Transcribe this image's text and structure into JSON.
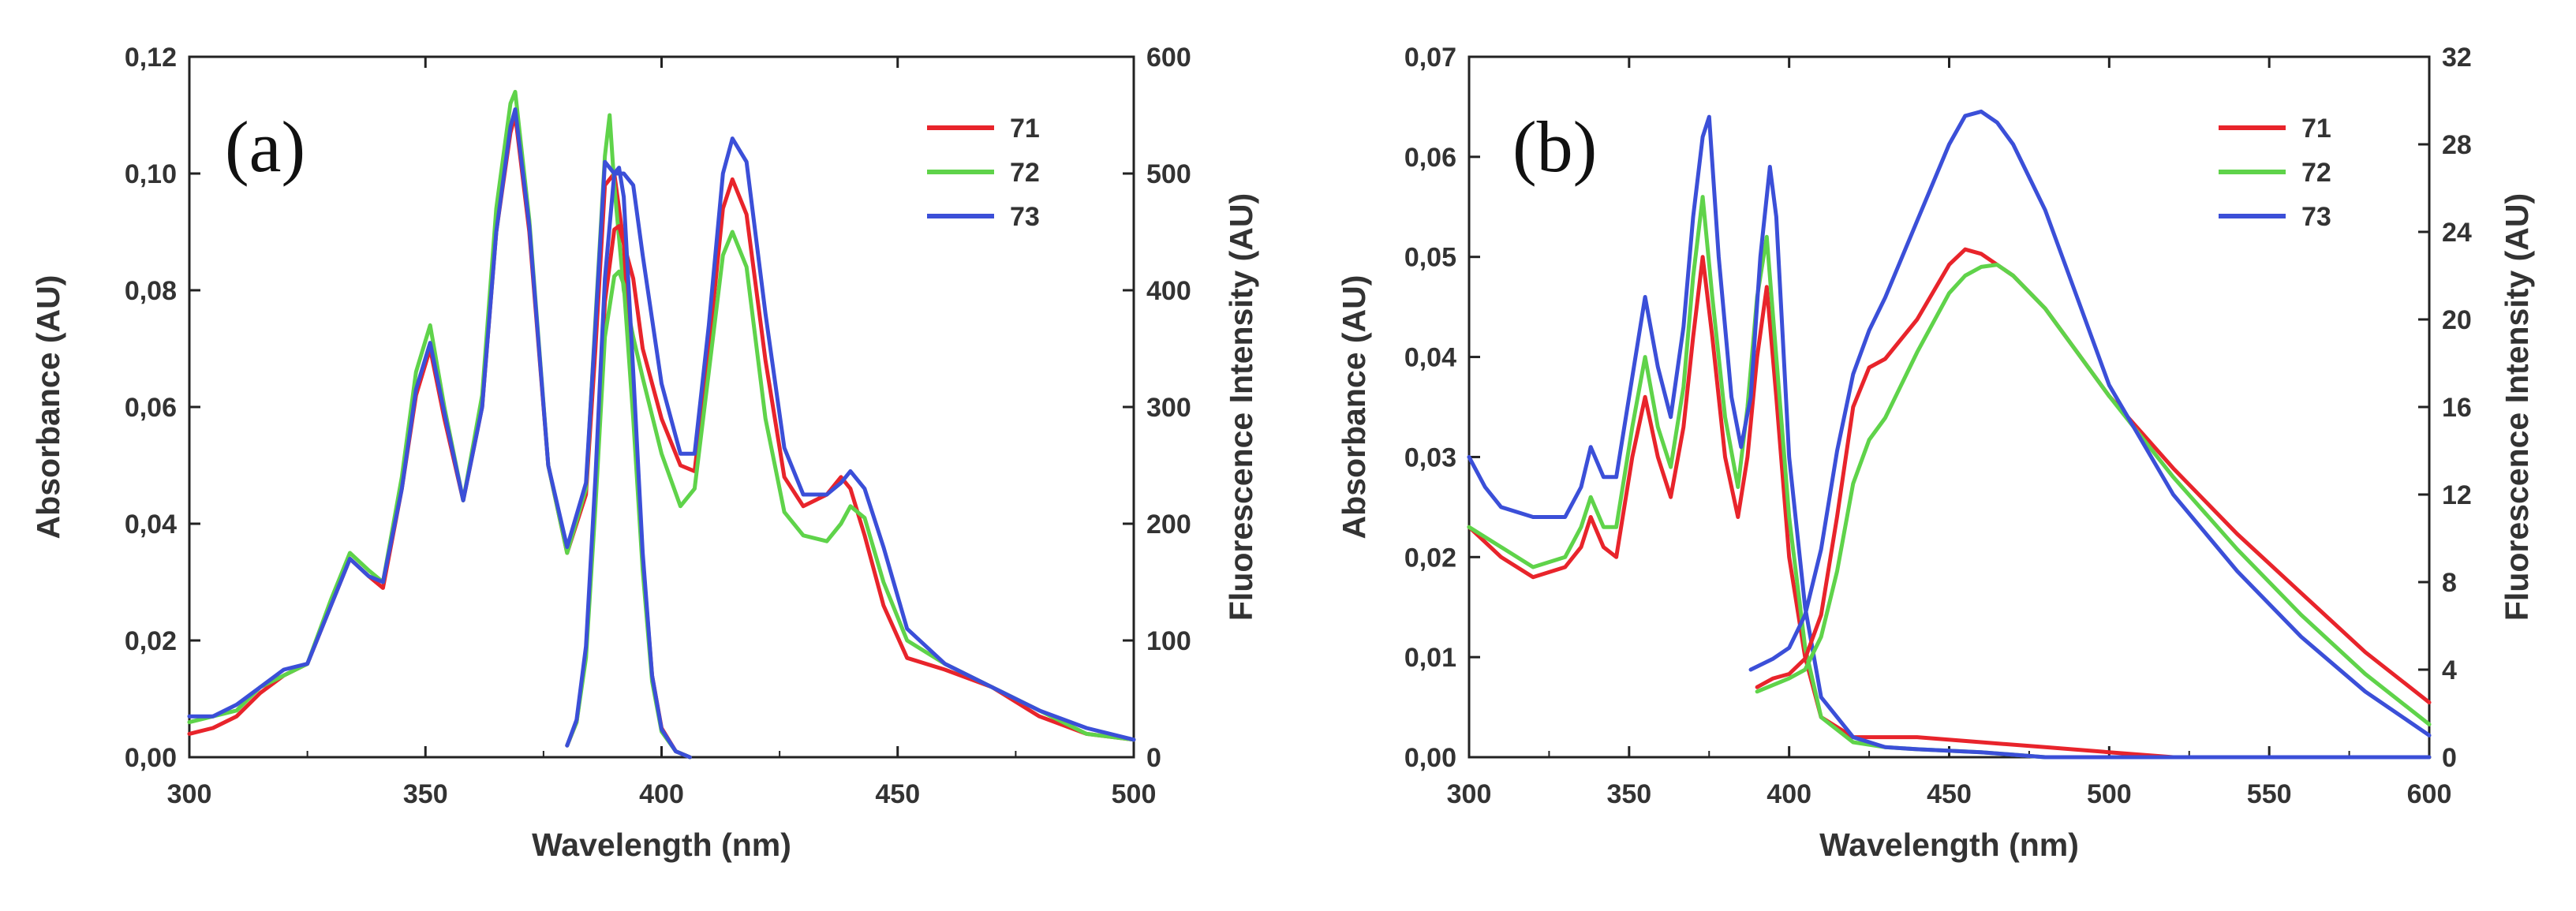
{
  "chart_data": [
    {
      "type": "line",
      "panel": "(a)",
      "xlabel": "Wavelength (nm)",
      "ylabel": "Absorbance (AU)",
      "y2label": "Fluorescence Intensity (AU)",
      "xlim": [
        300,
        500
      ],
      "ylim": [
        0,
        0.12
      ],
      "y2lim": [
        0,
        600
      ],
      "xticks": [
        300,
        350,
        400,
        450,
        500
      ],
      "yticks": [
        0,
        0.02,
        0.04,
        0.06,
        0.08,
        0.1,
        0.12
      ],
      "ytick_labels": [
        "0,00",
        "0,02",
        "0,04",
        "0,06",
        "0,08",
        "0,10",
        "0,12"
      ],
      "y2ticks": [
        0,
        100,
        200,
        300,
        400,
        500,
        600
      ],
      "legend": [
        "71",
        "72",
        "73"
      ],
      "legend_position": "top-right",
      "series": [
        {
          "name": "71",
          "color": "#e8242b",
          "kind": "absorbance",
          "x": [
            300,
            305,
            310,
            315,
            320,
            325,
            330,
            334,
            338,
            341,
            345,
            348,
            351,
            354,
            358,
            362,
            365,
            368,
            369,
            372,
            376,
            380,
            384,
            386,
            388,
            390,
            392,
            394,
            396,
            400,
            404,
            407,
            410,
            413,
            415,
            418,
            422,
            426,
            430,
            435,
            438,
            440,
            443,
            447,
            452,
            460,
            470,
            480,
            490,
            500
          ],
          "y": [
            0.004,
            0.005,
            0.007,
            0.011,
            0.014,
            0.016,
            0.026,
            0.034,
            0.031,
            0.029,
            0.046,
            0.062,
            0.07,
            0.058,
            0.044,
            0.06,
            0.09,
            0.107,
            0.11,
            0.09,
            0.05,
            0.035,
            0.045,
            0.07,
            0.098,
            0.1,
            0.088,
            0.082,
            0.07,
            0.058,
            0.05,
            0.049,
            0.07,
            0.094,
            0.099,
            0.093,
            0.068,
            0.048,
            0.043,
            0.045,
            0.048,
            0.046,
            0.038,
            0.026,
            0.017,
            0.015,
            0.012,
            0.007,
            0.004,
            0.003
          ]
        },
        {
          "name": "72",
          "color": "#5fd34a",
          "kind": "absorbance",
          "x": [
            300,
            305,
            310,
            315,
            320,
            325,
            330,
            334,
            338,
            341,
            345,
            348,
            351,
            354,
            358,
            362,
            365,
            368,
            369,
            372,
            376,
            380,
            384,
            386,
            388,
            389,
            390,
            392,
            394,
            396,
            400,
            404,
            407,
            410,
            413,
            415,
            418,
            422,
            426,
            430,
            435,
            438,
            440,
            443,
            447,
            452,
            460,
            470,
            480,
            490,
            500
          ],
          "y": [
            0.006,
            0.007,
            0.008,
            0.012,
            0.014,
            0.016,
            0.027,
            0.035,
            0.032,
            0.03,
            0.048,
            0.066,
            0.074,
            0.06,
            0.044,
            0.062,
            0.094,
            0.112,
            0.114,
            0.092,
            0.05,
            0.035,
            0.046,
            0.075,
            0.103,
            0.11,
            0.098,
            0.08,
            0.072,
            0.065,
            0.052,
            0.043,
            0.046,
            0.066,
            0.086,
            0.09,
            0.084,
            0.058,
            0.042,
            0.038,
            0.037,
            0.04,
            0.043,
            0.041,
            0.03,
            0.02,
            0.016,
            0.012,
            0.008,
            0.004,
            0.003
          ]
        },
        {
          "name": "73",
          "color": "#3b4fd8",
          "kind": "absorbance",
          "x": [
            300,
            305,
            310,
            315,
            320,
            325,
            330,
            334,
            338,
            341,
            345,
            348,
            351,
            354,
            358,
            362,
            365,
            368,
            369,
            372,
            376,
            380,
            384,
            386,
            388,
            390,
            392,
            394,
            396,
            400,
            404,
            407,
            410,
            413,
            415,
            418,
            422,
            426,
            430,
            435,
            438,
            440,
            443,
            447,
            452,
            460,
            470,
            480,
            490,
            500
          ],
          "y": [
            0.007,
            0.007,
            0.009,
            0.012,
            0.015,
            0.016,
            0.026,
            0.034,
            0.031,
            0.03,
            0.046,
            0.063,
            0.071,
            0.059,
            0.044,
            0.06,
            0.09,
            0.108,
            0.111,
            0.091,
            0.05,
            0.036,
            0.047,
            0.074,
            0.102,
            0.1,
            0.1,
            0.098,
            0.086,
            0.064,
            0.052,
            0.052,
            0.074,
            0.1,
            0.106,
            0.102,
            0.076,
            0.053,
            0.045,
            0.045,
            0.047,
            0.049,
            0.046,
            0.036,
            0.022,
            0.016,
            0.012,
            0.008,
            0.005,
            0.003
          ]
        },
        {
          "name": "71",
          "color": "#e8242b",
          "kind": "fluorescence",
          "x": [
            380,
            382,
            384,
            386,
            388,
            390,
            391,
            392,
            394,
            396,
            398,
            400,
            403,
            406
          ],
          "y": [
            10,
            30,
            90,
            230,
            390,
            452,
            455,
            440,
            310,
            170,
            70,
            25,
            5,
            0
          ]
        },
        {
          "name": "72",
          "color": "#5fd34a",
          "kind": "fluorescence",
          "x": [
            380,
            382,
            384,
            386,
            388,
            390,
            391,
            392,
            394,
            396,
            398,
            400,
            403,
            406
          ],
          "y": [
            10,
            30,
            85,
            215,
            360,
            412,
            416,
            405,
            290,
            160,
            65,
            22,
            5,
            0
          ]
        },
        {
          "name": "73",
          "color": "#3b4fd8",
          "kind": "fluorescence",
          "x": [
            380,
            382,
            384,
            386,
            388,
            390,
            391,
            392,
            394,
            396,
            398,
            400,
            403,
            406
          ],
          "y": [
            10,
            32,
            95,
            240,
            410,
            500,
            505,
            480,
            330,
            175,
            70,
            24,
            5,
            0
          ]
        }
      ]
    },
    {
      "type": "line",
      "panel": "(b)",
      "xlabel": "Wavelength (nm)",
      "ylabel": "Absorbance (AU)",
      "y2label": "Fluorescence Intensity (AU)",
      "xlim": [
        300,
        600
      ],
      "ylim": [
        0,
        0.07
      ],
      "y2lim": [
        0,
        32
      ],
      "xticks": [
        300,
        350,
        400,
        450,
        500,
        550,
        600
      ],
      "yticks": [
        0,
        0.01,
        0.02,
        0.03,
        0.04,
        0.05,
        0.06,
        0.07
      ],
      "ytick_labels": [
        "0,00",
        "0,01",
        "0,02",
        "0,03",
        "0,04",
        "0,05",
        "0,06",
        "0,07"
      ],
      "y2ticks": [
        0,
        4,
        8,
        12,
        16,
        20,
        24,
        28,
        32
      ],
      "legend": [
        "71",
        "72",
        "73"
      ],
      "legend_position": "top-right",
      "series": [
        {
          "name": "71",
          "color": "#e8242b",
          "kind": "absorbance",
          "x": [
            300,
            310,
            320,
            330,
            335,
            338,
            342,
            346,
            351,
            355,
            359,
            363,
            367,
            370,
            373,
            376,
            380,
            384,
            387,
            390,
            393,
            396,
            400,
            405,
            410,
            420,
            430,
            440,
            460,
            480,
            500,
            520,
            550,
            600
          ],
          "y": [
            0.023,
            0.02,
            0.018,
            0.019,
            0.021,
            0.024,
            0.021,
            0.02,
            0.03,
            0.036,
            0.03,
            0.026,
            0.033,
            0.042,
            0.05,
            0.042,
            0.03,
            0.024,
            0.03,
            0.04,
            0.047,
            0.036,
            0.02,
            0.01,
            0.004,
            0.002,
            0.002,
            0.002,
            0.0015,
            0.001,
            0.0005,
            0.0,
            0.0,
            0.0
          ]
        },
        {
          "name": "72",
          "color": "#5fd34a",
          "kind": "absorbance",
          "x": [
            300,
            310,
            320,
            330,
            335,
            338,
            342,
            346,
            351,
            355,
            359,
            363,
            367,
            370,
            373,
            376,
            380,
            384,
            387,
            390,
            393,
            396,
            400,
            405,
            410,
            420,
            430,
            440,
            460,
            480,
            500,
            520,
            550,
            600
          ],
          "y": [
            0.023,
            0.021,
            0.019,
            0.02,
            0.023,
            0.026,
            0.023,
            0.023,
            0.033,
            0.04,
            0.033,
            0.029,
            0.037,
            0.048,
            0.056,
            0.046,
            0.034,
            0.027,
            0.035,
            0.046,
            0.052,
            0.04,
            0.024,
            0.011,
            0.004,
            0.0015,
            0.001,
            0.0008,
            0.0005,
            0.0,
            0.0,
            0.0,
            0.0,
            0.0
          ]
        },
        {
          "name": "73",
          "color": "#3b4fd8",
          "kind": "absorbance",
          "x": [
            300,
            305,
            310,
            320,
            330,
            335,
            338,
            342,
            346,
            351,
            355,
            359,
            363,
            367,
            370,
            373,
            375,
            378,
            382,
            385,
            388,
            391,
            394,
            396,
            400,
            405,
            410,
            420,
            430,
            440,
            460,
            480,
            500,
            520,
            550,
            600
          ],
          "y": [
            0.03,
            0.027,
            0.025,
            0.024,
            0.024,
            0.027,
            0.031,
            0.028,
            0.028,
            0.038,
            0.046,
            0.039,
            0.034,
            0.043,
            0.054,
            0.062,
            0.064,
            0.05,
            0.036,
            0.031,
            0.036,
            0.05,
            0.059,
            0.054,
            0.03,
            0.015,
            0.006,
            0.002,
            0.001,
            0.0008,
            0.0005,
            0.0,
            0.0,
            0.0,
            0.0,
            0.0
          ]
        },
        {
          "name": "71",
          "color": "#e8242b",
          "kind": "fluorescence",
          "x": [
            390,
            395,
            400,
            405,
            410,
            415,
            420,
            425,
            430,
            440,
            450,
            455,
            460,
            470,
            480,
            490,
            500,
            520,
            540,
            560,
            580,
            600
          ],
          "y": [
            3.2,
            3.6,
            3.8,
            4.5,
            6.5,
            11,
            16,
            17.8,
            18.2,
            20,
            22.5,
            23.2,
            23.0,
            22,
            20.5,
            18.5,
            16.5,
            13.2,
            10.2,
            7.5,
            4.8,
            2.5
          ]
        },
        {
          "name": "72",
          "color": "#5fd34a",
          "kind": "fluorescence",
          "x": [
            390,
            395,
            400,
            405,
            410,
            415,
            420,
            425,
            430,
            440,
            450,
            455,
            460,
            465,
            470,
            480,
            490,
            500,
            520,
            540,
            560,
            580,
            600
          ],
          "y": [
            3.0,
            3.3,
            3.6,
            4.0,
            5.5,
            8.5,
            12.5,
            14.5,
            15.5,
            18.5,
            21.2,
            22,
            22.4,
            22.5,
            22,
            20.5,
            18.5,
            16.5,
            12.8,
            9.5,
            6.5,
            3.8,
            1.5
          ]
        },
        {
          "name": "73",
          "color": "#3b4fd8",
          "kind": "fluorescence",
          "x": [
            388,
            395,
            400,
            405,
            410,
            415,
            420,
            425,
            430,
            440,
            450,
            455,
            460,
            465,
            470,
            480,
            490,
            500,
            520,
            540,
            560,
            580,
            600
          ],
          "y": [
            4.0,
            4.5,
            5.0,
            6.5,
            9.5,
            14,
            17.5,
            19.5,
            21,
            24.5,
            28,
            29.3,
            29.5,
            29,
            28,
            25,
            21,
            17,
            12,
            8.5,
            5.5,
            3.0,
            1.0
          ]
        }
      ]
    }
  ]
}
